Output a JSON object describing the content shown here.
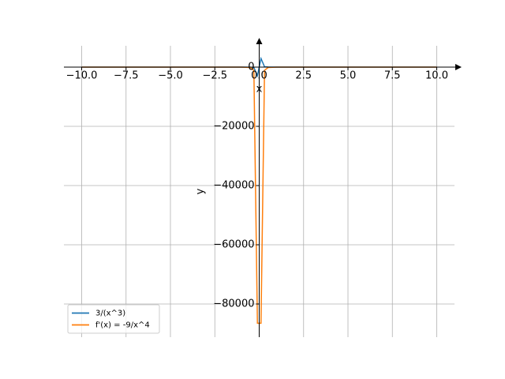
{
  "chart_data": {
    "type": "line",
    "x_label": "x",
    "y_label": "y",
    "x": [
      -10,
      -5,
      -2.5,
      -1,
      -0.5,
      -0.3,
      -0.101,
      0.101,
      0.3,
      0.5,
      1,
      2.5,
      5,
      10
    ],
    "series": [
      {
        "name": "3/(x^3)",
        "color": "#1f77b4",
        "values": [
          -0.003,
          -0.024,
          -0.192,
          -3,
          -24,
          -111.1,
          -2912,
          2912,
          111.1,
          24,
          3,
          0.192,
          0.024,
          0.003
        ]
      },
      {
        "name": "f'(x) = -9/x^4",
        "color": "#ff7f0e",
        "values": [
          -0.0009,
          -0.0144,
          -0.2304,
          -9,
          -144,
          -1111.1,
          -86490,
          -86490,
          -1111.1,
          -144,
          -9,
          -0.2304,
          -0.0144,
          -0.0009
        ]
      }
    ],
    "xlim": [
      -11,
      11
    ],
    "ylim": [
      -91200,
      7200
    ],
    "xticks": [
      {
        "value": -10,
        "label": "−10.0"
      },
      {
        "value": -7.5,
        "label": "−7.5"
      },
      {
        "value": -5,
        "label": "−5.0"
      },
      {
        "value": -2.5,
        "label": "−2.5"
      },
      {
        "value": 0,
        "label": "0.0"
      },
      2.5,
      {
        "value": 5,
        "label": "5.0"
      },
      7.5,
      {
        "value": 10,
        "label": "10.0"
      }
    ],
    "yticks": [
      0,
      {
        "value": -20000,
        "label": "−20000"
      },
      {
        "value": -40000,
        "label": "−40000"
      },
      {
        "value": -60000,
        "label": "−60000"
      },
      {
        "value": -80000,
        "label": "−80000"
      }
    ],
    "grid": true,
    "legend": "lower left"
  }
}
